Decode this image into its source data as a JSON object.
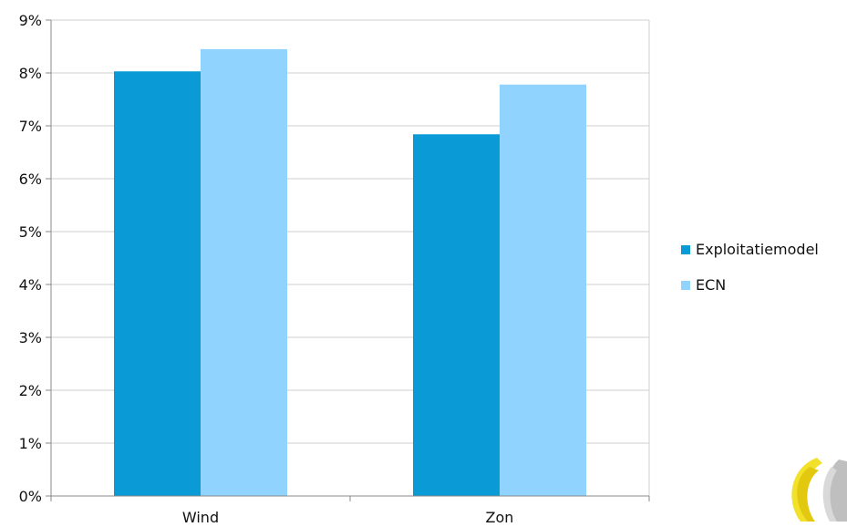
{
  "chart_data": {
    "type": "bar",
    "categories": [
      "Wind",
      "Zon"
    ],
    "series": [
      {
        "name": "Exploitatiemodel",
        "values": [
          8.03,
          6.84
        ],
        "color": "#0a9ad6"
      },
      {
        "name": "ECN",
        "values": [
          8.45,
          7.78
        ],
        "color": "#8fd3fe"
      }
    ],
    "ylim": [
      0,
      9
    ],
    "yticks": [
      0,
      1,
      2,
      3,
      4,
      5,
      6,
      7,
      8,
      9
    ],
    "ytick_labels": [
      "0%",
      "1%",
      "2%",
      "3%",
      "4%",
      "5%",
      "6%",
      "7%",
      "8%",
      "9%"
    ],
    "grid": true,
    "legend_position": "right"
  },
  "logo": {
    "name": "logo-emblem",
    "colors": [
      "#f2e12a",
      "#bfbfbf"
    ]
  }
}
